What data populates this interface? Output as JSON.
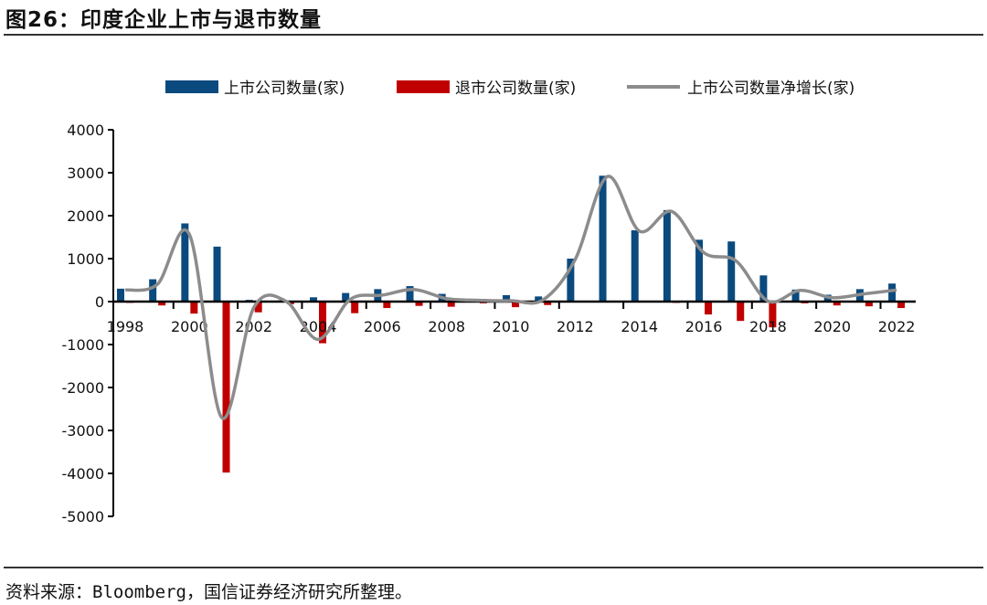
{
  "header": {
    "title": "图26：印度企业上市与退市数量"
  },
  "footer": {
    "source": "资料来源：Bloomberg，国信证券经济研究所整理。"
  },
  "colors": {
    "listed": "#0b4a7e",
    "delisted": "#c00000",
    "net": "#8c8c8c",
    "axis": "#000000"
  },
  "chart_data": {
    "type": "bar",
    "title": "印度企业上市与退市数量",
    "xlabel": "",
    "ylabel": "",
    "ylim": [
      -5000,
      4000
    ],
    "yticks": [
      4000,
      3000,
      2000,
      1000,
      0,
      -1000,
      -2000,
      -3000,
      -4000,
      -5000
    ],
    "grid": false,
    "legend_position": "top",
    "categories": [
      "1998",
      "1999",
      "2000",
      "2001",
      "2002",
      "2003",
      "2004",
      "2005",
      "2006",
      "2007",
      "2008",
      "2009",
      "2010",
      "2011",
      "2012",
      "2013",
      "2014",
      "2015",
      "2016",
      "2017",
      "2018",
      "2019",
      "2020",
      "2021",
      "2022"
    ],
    "xtick_labels": [
      "1998",
      "2000",
      "2002",
      "2004",
      "2006",
      "2008",
      "2010",
      "2012",
      "2014",
      "2016",
      "2018",
      "2020",
      "2022"
    ],
    "series": [
      {
        "name": "上市公司数量(家)",
        "type": "bar",
        "values": [
          300,
          520,
          1820,
          1280,
          40,
          30,
          100,
          200,
          290,
          360,
          180,
          60,
          150,
          120,
          1000,
          2930,
          1660,
          2130,
          1440,
          1400,
          610,
          280,
          160,
          290,
          420
        ]
      },
      {
        "name": "退市公司数量(家)",
        "type": "bar",
        "values": [
          -30,
          -90,
          -280,
          -3980,
          -250,
          -60,
          -970,
          -270,
          -150,
          -100,
          -120,
          -40,
          -130,
          -80,
          -20,
          -20,
          -20,
          -30,
          -300,
          -450,
          -600,
          -40,
          -90,
          -110,
          -150
        ]
      },
      {
        "name": "上市公司数量净增长(家)",
        "type": "line",
        "values": [
          270,
          400,
          1560,
          -2700,
          -140,
          10,
          -880,
          50,
          150,
          280,
          70,
          30,
          20,
          40,
          980,
          2910,
          1640,
          2100,
          1140,
          950,
          10,
          260,
          90,
          180,
          270
        ]
      }
    ]
  },
  "legend": {
    "items": [
      {
        "label": "上市公司数量(家)"
      },
      {
        "label": "退市公司数量(家)"
      },
      {
        "label": "上市公司数量净增长(家)"
      }
    ]
  }
}
